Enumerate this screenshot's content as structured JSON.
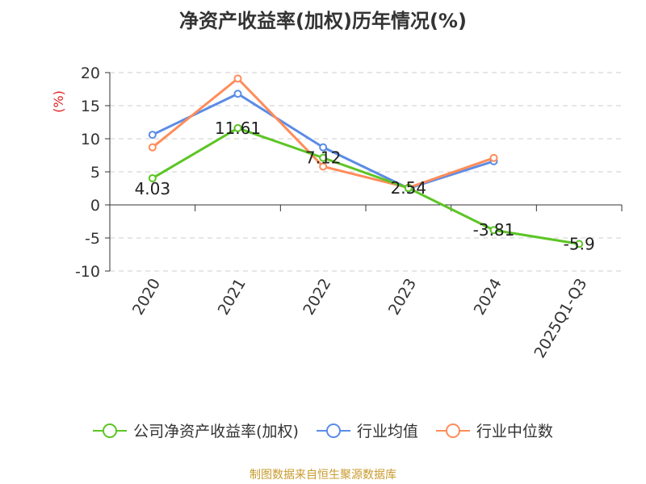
{
  "title": "净资产收益率(加权)历年情况(%)",
  "source": "制图数据来自恒生聚源数据库",
  "chart_data": {
    "type": "line",
    "title": "净资产收益率(加权)历年情况(%)",
    "ylabel": "(%)",
    "categories": [
      "2020",
      "2021",
      "2022",
      "2023",
      "2024",
      "2025Q1-Q3"
    ],
    "ylim": [
      -10,
      20
    ],
    "yticks": [
      20,
      15,
      10,
      5,
      0,
      -5,
      -10
    ],
    "ytick_labels": [
      "20",
      "15",
      "10",
      "5",
      "0",
      "-5",
      "-10"
    ],
    "grid": true,
    "legend_position": "bottom",
    "series": [
      {
        "name": "公司净资产收益率(加权)",
        "color": "#5cc524",
        "values": [
          4.03,
          11.61,
          7.12,
          2.54,
          -3.81,
          -5.9
        ],
        "labels": [
          "4.03",
          "11.61",
          "7.12",
          "2.54",
          "-3.81",
          "-5.9"
        ]
      },
      {
        "name": "行业均值",
        "color": "#5b8ce6",
        "values": [
          10.6,
          16.8,
          8.7,
          2.5,
          6.6,
          null
        ]
      },
      {
        "name": "行业中位数",
        "color": "#ff8c5a",
        "values": [
          8.7,
          19.1,
          5.8,
          2.6,
          7.1,
          null
        ]
      }
    ]
  }
}
